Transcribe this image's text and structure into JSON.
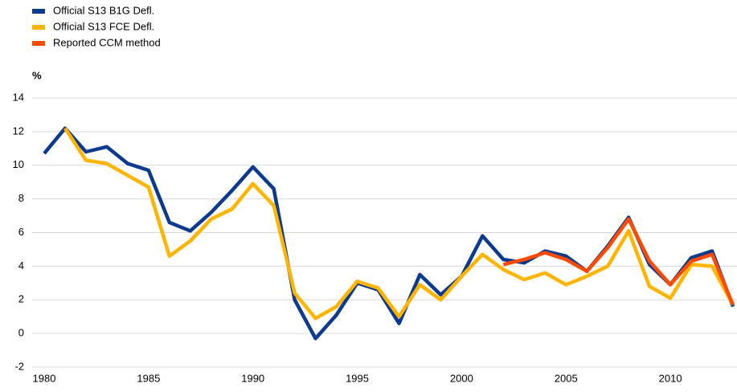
{
  "chart_data": {
    "type": "line",
    "ylabel": "%",
    "x": [
      1980,
      1981,
      1982,
      1983,
      1984,
      1985,
      1986,
      1987,
      1988,
      1989,
      1990,
      1991,
      1992,
      1993,
      1994,
      1995,
      1996,
      1997,
      1998,
      1999,
      2000,
      2001,
      2002,
      2003,
      2004,
      2005,
      2006,
      2007,
      2008,
      2009,
      2010,
      2011,
      2012,
      2013
    ],
    "series": [
      {
        "name": "Official S13 B1G Defl.",
        "color": "#0b3a8f",
        "values": [
          10.7,
          12.2,
          10.8,
          11.1,
          10.1,
          9.7,
          6.6,
          6.1,
          7.2,
          8.5,
          9.9,
          8.6,
          2.0,
          -0.3,
          1.1,
          3.0,
          2.6,
          0.6,
          3.5,
          2.3,
          3.4,
          5.8,
          4.4,
          4.2,
          4.9,
          4.6,
          3.7,
          5.2,
          6.9,
          4.1,
          2.9,
          4.5,
          4.9,
          1.6
        ]
      },
      {
        "name": "Official S13 FCE Defl.",
        "color": "#ffb400",
        "values": [
          null,
          12.2,
          10.3,
          10.1,
          9.4,
          8.7,
          4.6,
          5.5,
          6.8,
          7.4,
          8.9,
          7.6,
          2.4,
          0.9,
          1.6,
          3.1,
          2.7,
          1.0,
          2.9,
          2.0,
          3.4,
          4.7,
          3.8,
          3.2,
          3.6,
          2.9,
          3.4,
          4.0,
          6.1,
          2.8,
          2.1,
          4.1,
          4.0,
          1.7
        ]
      },
      {
        "name": "Reported CCM method",
        "color": "#ff4b00",
        "values": [
          null,
          null,
          null,
          null,
          null,
          null,
          null,
          null,
          null,
          null,
          null,
          null,
          null,
          null,
          null,
          null,
          null,
          null,
          null,
          null,
          null,
          null,
          4.1,
          4.4,
          4.8,
          4.4,
          3.7,
          5.1,
          6.8,
          4.3,
          2.9,
          4.3,
          4.7,
          1.7
        ]
      }
    ],
    "xlim": [
      1980,
      2013
    ],
    "xticks": [
      1980,
      1985,
      1990,
      1995,
      2000,
      2005,
      2010
    ],
    "ylim": [
      -2,
      14
    ],
    "yticks": [
      -2,
      0,
      2,
      4,
      6,
      8,
      10,
      12,
      14
    ],
    "grid": true
  }
}
